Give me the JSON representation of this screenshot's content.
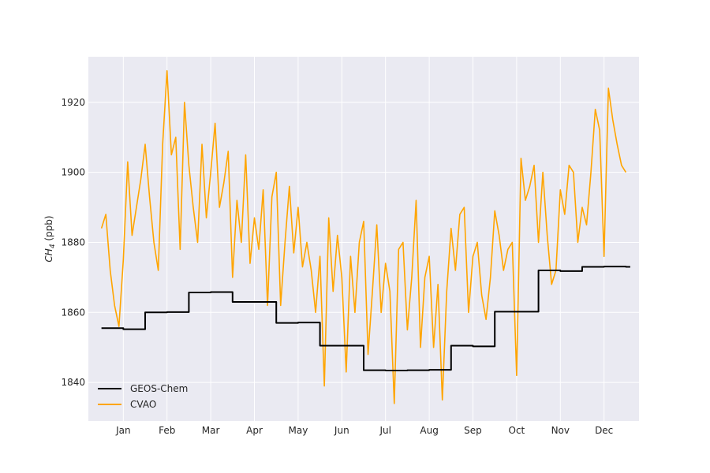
{
  "chart_data": {
    "type": "line",
    "title": "",
    "xlabel": "",
    "ylabel": "CH4 (ppb)",
    "ylabel_main": "CH",
    "ylabel_sub": "4",
    "ylabel_unit": " (ppb)",
    "x_axis_kind": "month-of-year",
    "xlim": [
      -0.3,
      12.3
    ],
    "ylim": [
      1829,
      1933
    ],
    "grid": true,
    "legend_position": "lower-left",
    "x_ticks": [
      {
        "value": 0.5,
        "label": "Jan"
      },
      {
        "value": 1.5,
        "label": "Feb"
      },
      {
        "value": 2.5,
        "label": "Mar"
      },
      {
        "value": 3.5,
        "label": "Apr"
      },
      {
        "value": 4.5,
        "label": "May"
      },
      {
        "value": 5.5,
        "label": "Jun"
      },
      {
        "value": 6.5,
        "label": "Jul"
      },
      {
        "value": 7.5,
        "label": "Aug"
      },
      {
        "value": 8.5,
        "label": "Sep"
      },
      {
        "value": 9.5,
        "label": "Oct"
      },
      {
        "value": 10.5,
        "label": "Nov"
      },
      {
        "value": 11.5,
        "label": "Dec"
      }
    ],
    "y_ticks": [
      {
        "value": 1840,
        "label": "1840"
      },
      {
        "value": 1860,
        "label": "1860"
      },
      {
        "value": 1880,
        "label": "1880"
      },
      {
        "value": 1900,
        "label": "1900"
      },
      {
        "value": 1920,
        "label": "1920"
      }
    ],
    "series": [
      {
        "name": "GEOS-Chem",
        "color": "#000000",
        "style": "step",
        "x": [
          0.0,
          0.5,
          1.0,
          1.5,
          2.0,
          2.5,
          3.0,
          3.5,
          4.0,
          4.5,
          5.0,
          5.5,
          6.0,
          6.5,
          7.0,
          7.5,
          8.0,
          8.5,
          9.0,
          9.5,
          10.0,
          10.5,
          11.0,
          11.5,
          12.0
        ],
        "values": [
          1855.5,
          1855.2,
          1860.0,
          1860.1,
          1865.7,
          1865.8,
          1863.0,
          1863.0,
          1857.0,
          1857.1,
          1850.5,
          1850.5,
          1843.5,
          1843.4,
          1843.5,
          1843.6,
          1850.5,
          1850.3,
          1860.2,
          1860.2,
          1872.0,
          1871.8,
          1873.0,
          1873.1,
          1873.0
        ]
      },
      {
        "name": "CVAO",
        "color": "#FFA500",
        "style": "line",
        "x": [
          0.0,
          0.1,
          0.2,
          0.3,
          0.4,
          0.5,
          0.6,
          0.7,
          0.8,
          0.9,
          1.0,
          1.1,
          1.2,
          1.3,
          1.4,
          1.5,
          1.6,
          1.7,
          1.8,
          1.9,
          2.0,
          2.1,
          2.2,
          2.3,
          2.4,
          2.5,
          2.6,
          2.7,
          2.8,
          2.9,
          3.0,
          3.1,
          3.2,
          3.3,
          3.4,
          3.5,
          3.6,
          3.7,
          3.8,
          3.9,
          4.0,
          4.1,
          4.2,
          4.3,
          4.4,
          4.5,
          4.6,
          4.7,
          4.8,
          4.9,
          5.0,
          5.1,
          5.2,
          5.3,
          5.4,
          5.5,
          5.6,
          5.7,
          5.8,
          5.9,
          6.0,
          6.1,
          6.2,
          6.3,
          6.4,
          6.5,
          6.6,
          6.7,
          6.8,
          6.9,
          7.0,
          7.1,
          7.2,
          7.3,
          7.4,
          7.5,
          7.6,
          7.7,
          7.8,
          7.9,
          8.0,
          8.1,
          8.2,
          8.3,
          8.4,
          8.5,
          8.6,
          8.7,
          8.8,
          8.9,
          9.0,
          9.1,
          9.2,
          9.3,
          9.4,
          9.5,
          9.6,
          9.7,
          9.8,
          9.9,
          10.0,
          10.1,
          10.2,
          10.3,
          10.4,
          10.5,
          10.6,
          10.7,
          10.8,
          10.9,
          11.0,
          11.1,
          11.2,
          11.3,
          11.4,
          11.5,
          11.6,
          11.7,
          11.8,
          11.9,
          12.0
        ],
        "values": [
          1884,
          1888,
          1872,
          1862,
          1856,
          1875,
          1903,
          1882,
          1890,
          1898,
          1908,
          1893,
          1880,
          1872,
          1908,
          1929,
          1905,
          1910,
          1878,
          1920,
          1902,
          1890,
          1880,
          1908,
          1887,
          1900,
          1914,
          1890,
          1897,
          1906,
          1870,
          1892,
          1880,
          1905,
          1874,
          1887,
          1878,
          1895,
          1862,
          1893,
          1900,
          1862,
          1880,
          1896,
          1877,
          1890,
          1873,
          1880,
          1872,
          1860,
          1876,
          1839,
          1887,
          1866,
          1882,
          1870,
          1843,
          1876,
          1860,
          1880,
          1886,
          1848,
          1866,
          1885,
          1860,
          1874,
          1866,
          1834,
          1878,
          1880,
          1855,
          1870,
          1892,
          1850,
          1870,
          1876,
          1850,
          1868,
          1835,
          1866,
          1884,
          1872,
          1888,
          1890,
          1860,
          1876,
          1880,
          1865,
          1858,
          1870,
          1889,
          1882,
          1872,
          1878,
          1880,
          1842,
          1904,
          1892,
          1896,
          1902,
          1880,
          1900,
          1882,
          1868,
          1872,
          1895,
          1888,
          1902,
          1900,
          1880,
          1890,
          1885,
          1900,
          1918,
          1912,
          1876,
          1924,
          1915,
          1908,
          1902,
          1900
        ]
      }
    ]
  }
}
